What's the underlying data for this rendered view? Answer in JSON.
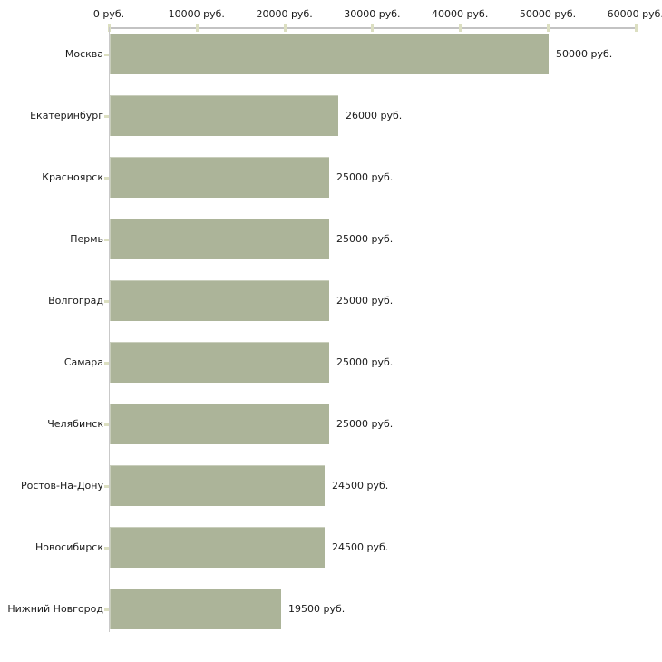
{
  "chart_data": {
    "type": "bar",
    "orientation": "horizontal",
    "title": "",
    "xlabel": "",
    "ylabel": "",
    "categories": [
      "Москва",
      "Екатеринбург",
      "Красноярск",
      "Пермь",
      "Волгоград",
      "Самара",
      "Челябинск",
      "Ростов-На-Дону",
      "Новосибирск",
      "Нижний Новгород"
    ],
    "values": [
      50000,
      26000,
      25000,
      25000,
      25000,
      25000,
      25000,
      24500,
      24500,
      19500
    ],
    "value_labels": [
      "50000 руб.",
      "26000 руб.",
      "25000 руб.",
      "25000 руб.",
      "25000 руб.",
      "25000 руб.",
      "25000 руб.",
      "24500 руб.",
      "24500 руб.",
      "19500 руб."
    ],
    "x_axis": {
      "position": "top",
      "range": [
        0,
        60000
      ],
      "ticks": [
        0,
        10000,
        20000,
        30000,
        40000,
        50000,
        60000
      ],
      "tick_labels": [
        "0 руб.",
        "10000 руб.",
        "20000 руб.",
        "30000 руб.",
        "40000 руб.",
        "50000 руб.",
        "60000 руб."
      ]
    },
    "grid": false,
    "legend": false,
    "colors": {
      "bar_fill": "#acb499",
      "axis_line": "#c3c3c3",
      "y_axis_line": "#c9c9c9",
      "tick_mark": "#dcdfc1",
      "text": "#1a1a1a",
      "background": "#ffffff"
    }
  }
}
